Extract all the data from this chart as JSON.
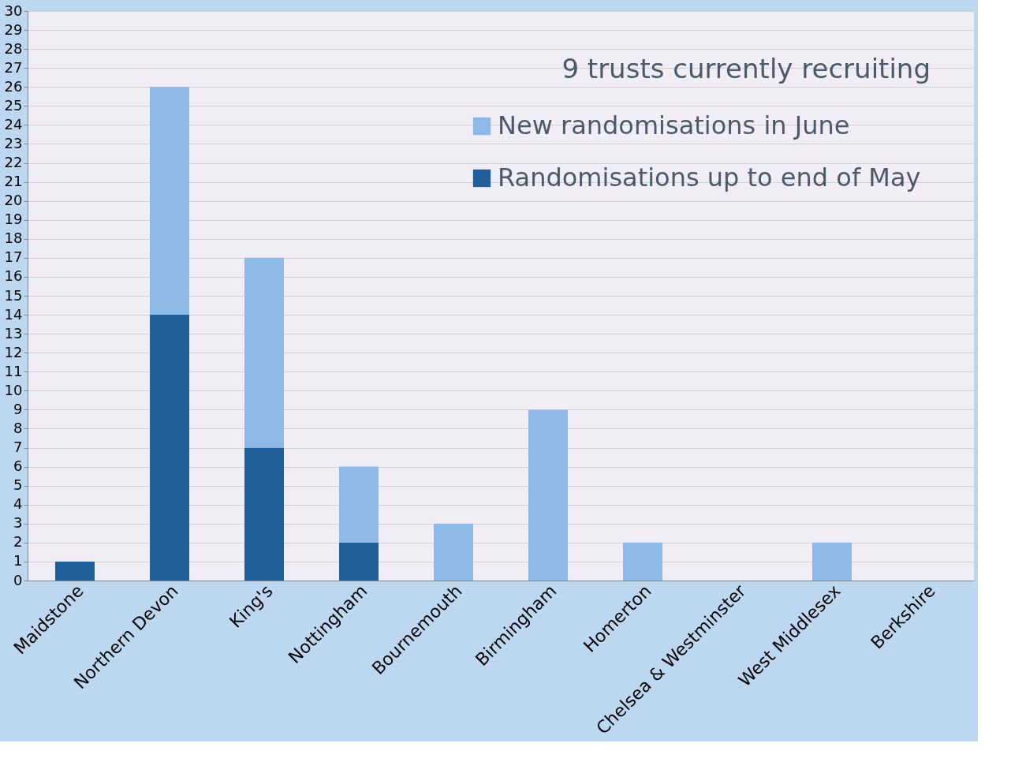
{
  "chart_data": {
    "type": "bar",
    "stacked": true,
    "categories": [
      "Maidstone",
      "Northern Devon",
      "King's",
      "Nottingham",
      "Bournemouth",
      "Birmingham",
      "Homerton",
      "Chelsea & Westminster",
      "West Middlesex",
      "Berkshire"
    ],
    "series": [
      {
        "name": "Randomisations up to end of May",
        "color": "#215f9a",
        "values": [
          1,
          14,
          7,
          2,
          0,
          0,
          0,
          0,
          0,
          0
        ]
      },
      {
        "name": "New randomisations in June",
        "color": "#8db9e6",
        "values": [
          0,
          12,
          10,
          4,
          3,
          9,
          2,
          0,
          2,
          0
        ]
      }
    ],
    "ylim": [
      0,
      30
    ],
    "yticks": [
      0,
      1,
      2,
      3,
      4,
      5,
      6,
      7,
      8,
      9,
      10,
      11,
      12,
      13,
      14,
      15,
      16,
      17,
      18,
      19,
      20,
      21,
      22,
      23,
      24,
      25,
      26,
      27,
      28,
      29,
      30
    ],
    "grid": "y",
    "legend": "top right",
    "annotations": [
      "9 trusts currently recruiting"
    ]
  }
}
